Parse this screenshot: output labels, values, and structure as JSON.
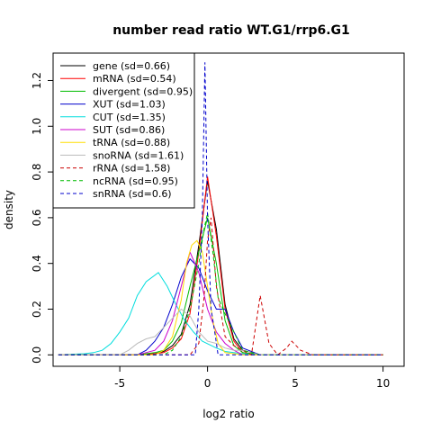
{
  "chart_data": {
    "type": "line",
    "title": "number read ratio WT.G1/rrp6.G1",
    "xlabel": "log2 ratio",
    "ylabel": "density",
    "xlim": [
      -8.8,
      11.2
    ],
    "ylim": [
      -0.05,
      1.32
    ],
    "xticks": [
      -5,
      0,
      5,
      10
    ],
    "yticks": [
      0.0,
      0.2,
      0.4,
      0.6,
      0.8,
      1.0,
      1.2
    ],
    "xtick_labels": [
      "-5",
      "0",
      "5",
      "10"
    ],
    "ytick_labels": [
      "0.0",
      "0.2",
      "0.4",
      "0.6",
      "0.8",
      "1.0",
      "1.2"
    ],
    "grid": false,
    "legend_position": "top-left",
    "series": [
      {
        "name": "gene (sd=0.66)",
        "color": "#000000",
        "dash": "solid",
        "points": [
          [
            -8.5,
            0
          ],
          [
            -5,
            0
          ],
          [
            -4,
            0
          ],
          [
            -3,
            0.005
          ],
          [
            -2.5,
            0.015
          ],
          [
            -2,
            0.04
          ],
          [
            -1.5,
            0.09
          ],
          [
            -1,
            0.22
          ],
          [
            -0.5,
            0.48
          ],
          [
            0,
            0.76
          ],
          [
            0.5,
            0.55
          ],
          [
            1,
            0.22
          ],
          [
            1.5,
            0.07
          ],
          [
            2,
            0.02
          ],
          [
            3,
            0
          ],
          [
            10,
            0
          ]
        ]
      },
      {
        "name": "mRNA (sd=0.54)",
        "color": "#ff0000",
        "dash": "solid",
        "points": [
          [
            -8.5,
            0
          ],
          [
            -4,
            0
          ],
          [
            -3,
            0.005
          ],
          [
            -2.5,
            0.01
          ],
          [
            -2,
            0.03
          ],
          [
            -1.5,
            0.07
          ],
          [
            -1,
            0.18
          ],
          [
            -0.5,
            0.45
          ],
          [
            0,
            0.78
          ],
          [
            0.5,
            0.52
          ],
          [
            1,
            0.2
          ],
          [
            1.5,
            0.06
          ],
          [
            2,
            0.01
          ],
          [
            3,
            0
          ],
          [
            10,
            0
          ]
        ]
      },
      {
        "name": "divergent (sd=0.95)",
        "color": "#00bb00",
        "dash": "solid",
        "points": [
          [
            -8.5,
            0
          ],
          [
            -4,
            0
          ],
          [
            -3,
            0.01
          ],
          [
            -2.5,
            0.02
          ],
          [
            -2,
            0.06
          ],
          [
            -1.5,
            0.14
          ],
          [
            -1,
            0.3
          ],
          [
            -0.5,
            0.45
          ],
          [
            0,
            0.6
          ],
          [
            0.5,
            0.4
          ],
          [
            1,
            0.15
          ],
          [
            1.5,
            0.04
          ],
          [
            2,
            0.01
          ],
          [
            3,
            0
          ],
          [
            10,
            0
          ]
        ]
      },
      {
        "name": "XUT (sd=1.03)",
        "color": "#0000cc",
        "dash": "solid",
        "points": [
          [
            -8.5,
            0
          ],
          [
            -4,
            0
          ],
          [
            -3.5,
            0.02
          ],
          [
            -3,
            0.06
          ],
          [
            -2.5,
            0.12
          ],
          [
            -2,
            0.22
          ],
          [
            -1.5,
            0.34
          ],
          [
            -1,
            0.42
          ],
          [
            -0.5,
            0.38
          ],
          [
            0,
            0.28
          ],
          [
            0.5,
            0.2
          ],
          [
            1,
            0.2
          ],
          [
            1.5,
            0.1
          ],
          [
            2,
            0.03
          ],
          [
            3,
            0
          ],
          [
            10,
            0
          ]
        ]
      },
      {
        "name": "CUT (sd=1.35)",
        "color": "#00dddd",
        "dash": "solid",
        "points": [
          [
            -8.5,
            0
          ],
          [
            -7,
            0.005
          ],
          [
            -6.5,
            0.01
          ],
          [
            -6,
            0.02
          ],
          [
            -5.5,
            0.05
          ],
          [
            -5,
            0.1
          ],
          [
            -4.5,
            0.16
          ],
          [
            -4,
            0.26
          ],
          [
            -3.5,
            0.32
          ],
          [
            -2.8,
            0.36
          ],
          [
            -2.3,
            0.3
          ],
          [
            -1.8,
            0.22
          ],
          [
            -1.3,
            0.15
          ],
          [
            -0.8,
            0.1
          ],
          [
            -0.3,
            0.06
          ],
          [
            0.5,
            0.03
          ],
          [
            1,
            0.015
          ],
          [
            2,
            0.005
          ],
          [
            3,
            0
          ],
          [
            10,
            0
          ]
        ]
      },
      {
        "name": "SUT (sd=0.86)",
        "color": "#cc00cc",
        "dash": "solid",
        "points": [
          [
            -8.5,
            0
          ],
          [
            -4,
            0
          ],
          [
            -3,
            0.02
          ],
          [
            -2.5,
            0.06
          ],
          [
            -2,
            0.15
          ],
          [
            -1.5,
            0.3
          ],
          [
            -1,
            0.45
          ],
          [
            -0.5,
            0.36
          ],
          [
            0,
            0.2
          ],
          [
            0.5,
            0.1
          ],
          [
            1,
            0.05
          ],
          [
            1.5,
            0.02
          ],
          [
            2,
            0
          ],
          [
            10,
            0
          ]
        ]
      },
      {
        "name": "tRNA (sd=0.88)",
        "color": "#ffdd00",
        "dash": "solid",
        "points": [
          [
            -8.5,
            0
          ],
          [
            -3,
            0
          ],
          [
            -2.5,
            0.02
          ],
          [
            -2,
            0.08
          ],
          [
            -1.5,
            0.24
          ],
          [
            -1.2,
            0.4
          ],
          [
            -0.9,
            0.48
          ],
          [
            -0.6,
            0.5
          ],
          [
            -0.3,
            0.45
          ],
          [
            0,
            0.3
          ],
          [
            0.3,
            0.15
          ],
          [
            0.6,
            0.05
          ],
          [
            1,
            0.01
          ],
          [
            2,
            0
          ],
          [
            10,
            0
          ]
        ]
      },
      {
        "name": "snoRNA (sd=1.61)",
        "color": "#bbbbbb",
        "dash": "solid",
        "points": [
          [
            -8.5,
            0
          ],
          [
            -5,
            0
          ],
          [
            -4.5,
            0.02
          ],
          [
            -4,
            0.05
          ],
          [
            -3.5,
            0.07
          ],
          [
            -3,
            0.08
          ],
          [
            -2.5,
            0.12
          ],
          [
            -2,
            0.16
          ],
          [
            -1.5,
            0.2
          ],
          [
            -1,
            0.17
          ],
          [
            -0.5,
            0.1
          ],
          [
            0,
            0.06
          ],
          [
            0.5,
            0.05
          ],
          [
            1,
            0.03
          ],
          [
            1.5,
            0.02
          ],
          [
            2,
            0.02
          ],
          [
            3,
            0
          ],
          [
            10,
            0
          ]
        ]
      },
      {
        "name": "rRNA (sd=1.58)",
        "color": "#cc0000",
        "dash": "dashed",
        "points": [
          [
            -8.5,
            0
          ],
          [
            -1,
            0
          ],
          [
            -0.5,
            0.05
          ],
          [
            -0.2,
            0.25
          ],
          [
            0,
            0.5
          ],
          [
            0.2,
            0.6
          ],
          [
            0.5,
            0.3
          ],
          [
            1,
            0.08
          ],
          [
            1.5,
            0.04
          ],
          [
            2,
            0.02
          ],
          [
            2.5,
            0
          ],
          [
            3,
            0.26
          ],
          [
            3.5,
            0.05
          ],
          [
            4,
            0
          ],
          [
            4.5,
            0.03
          ],
          [
            4.8,
            0.06
          ],
          [
            5.3,
            0.02
          ],
          [
            6,
            0
          ],
          [
            10,
            0
          ]
        ]
      },
      {
        "name": "ncRNA (sd=0.95)",
        "color": "#00bb00",
        "dash": "dashed",
        "points": [
          [
            -8.5,
            0
          ],
          [
            -2.5,
            0
          ],
          [
            -2,
            0.02
          ],
          [
            -1.5,
            0.08
          ],
          [
            -1,
            0.2
          ],
          [
            -0.5,
            0.4
          ],
          [
            -0.2,
            0.55
          ],
          [
            0,
            0.62
          ],
          [
            0.3,
            0.45
          ],
          [
            0.6,
            0.25
          ],
          [
            1,
            0.18
          ],
          [
            1.5,
            0.1
          ],
          [
            2,
            0.02
          ],
          [
            3,
            0
          ],
          [
            10,
            0
          ]
        ]
      },
      {
        "name": "snRNA (sd=0.6)",
        "color": "#0000cc",
        "dash": "dashed",
        "points": [
          [
            -8.5,
            0
          ],
          [
            -0.7,
            0
          ],
          [
            -0.5,
            0.2
          ],
          [
            -0.3,
            0.6
          ],
          [
            -0.15,
            1.28
          ],
          [
            0,
            0.6
          ],
          [
            0.2,
            0.2
          ],
          [
            0.45,
            0.08
          ],
          [
            0.6,
            0
          ],
          [
            10,
            0
          ]
        ]
      }
    ]
  }
}
